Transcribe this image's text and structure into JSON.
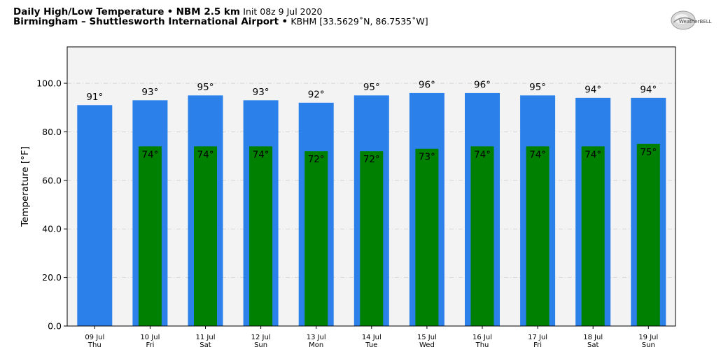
{
  "header": {
    "title_bold": "Daily High/Low Temperature",
    "model_bold": "NBM 2.5 km",
    "init_text": "Init 08z 9 Jul 2020",
    "location_bold": "Birmingham – Shuttlesworth International Airport",
    "station_text": "KBHM [33.5629˚N, 86.7535˚W]",
    "bullet": "•"
  },
  "logo": {
    "text": "WeatherBELL"
  },
  "chart_data": {
    "type": "bar",
    "title": "Daily High/Low Temperature",
    "xlabel": "",
    "ylabel": "Temperature [°F]",
    "ylim": [
      0,
      115
    ],
    "yticks": [
      "0.0",
      "20.0",
      "40.0",
      "60.0",
      "80.0",
      "100.0"
    ],
    "ytick_values": [
      0,
      20,
      40,
      60,
      80,
      100
    ],
    "grid": true,
    "categories": [
      {
        "date": "09 Jul",
        "day": "Thu"
      },
      {
        "date": "10 Jul",
        "day": "Fri"
      },
      {
        "date": "11 Jul",
        "day": "Sat"
      },
      {
        "date": "12 Jul",
        "day": "Sun"
      },
      {
        "date": "13 Jul",
        "day": "Mon"
      },
      {
        "date": "14 Jul",
        "day": "Tue"
      },
      {
        "date": "15 Jul",
        "day": "Wed"
      },
      {
        "date": "16 Jul",
        "day": "Thu"
      },
      {
        "date": "17 Jul",
        "day": "Fri"
      },
      {
        "date": "18 Jul",
        "day": "Sat"
      },
      {
        "date": "19 Jul",
        "day": "Sun"
      }
    ],
    "series": [
      {
        "color": "#2b80ea",
        "values": [
          91,
          93,
          95,
          93,
          92,
          95,
          96,
          96,
          95,
          94,
          94
        ],
        "labels": [
          "91°",
          "93°",
          "95°",
          "93°",
          "92°",
          "95°",
          "96°",
          "96°",
          "95°",
          "94°",
          "94°"
        ]
      },
      {
        "color": "#008000",
        "values": [
          null,
          74,
          74,
          74,
          72,
          72,
          73,
          74,
          74,
          74,
          75
        ],
        "labels": [
          "",
          "74°",
          "74°",
          "74°",
          "72°",
          "72°",
          "73°",
          "74°",
          "74°",
          "74°",
          "75°"
        ]
      }
    ],
    "colors": {
      "plot_bg": "#f3f3f3",
      "grid": "#cfcfcf"
    }
  }
}
